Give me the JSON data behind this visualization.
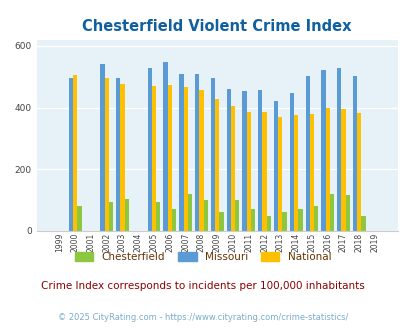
{
  "title": "Chesterfield Violent Crime Index",
  "subtitle": "Crime Index corresponds to incidents per 100,000 inhabitants",
  "footer": "© 2025 CityRating.com - https://www.cityrating.com/crime-statistics/",
  "years": [
    1999,
    2000,
    2001,
    2002,
    2003,
    2004,
    2005,
    2006,
    2007,
    2008,
    2009,
    2010,
    2011,
    2012,
    2013,
    2014,
    2015,
    2016,
    2017,
    2018,
    2019
  ],
  "chesterfield": [
    0,
    80,
    0,
    95,
    105,
    0,
    95,
    72,
    120,
    100,
    60,
    102,
    70,
    50,
    60,
    70,
    80,
    120,
    115,
    50,
    0
  ],
  "missouri": [
    0,
    495,
    0,
    540,
    495,
    0,
    527,
    547,
    510,
    510,
    497,
    460,
    453,
    456,
    420,
    448,
    502,
    522,
    527,
    503,
    0
  ],
  "national": [
    0,
    506,
    0,
    495,
    475,
    0,
    470,
    473,
    468,
    458,
    429,
    404,
    387,
    387,
    368,
    375,
    380,
    398,
    395,
    381,
    0
  ],
  "bar_color_chesterfield": "#8dc63f",
  "bar_color_missouri": "#5b9bd5",
  "bar_color_national": "#ffc000",
  "bg_color": "#e6f2f8",
  "ylim": [
    0,
    620
  ],
  "yticks": [
    0,
    200,
    400,
    600
  ],
  "title_color": "#1060a0",
  "subtitle_color": "#8b0000",
  "footer_color": "#7aadcc",
  "legend_label_color": "#663300"
}
